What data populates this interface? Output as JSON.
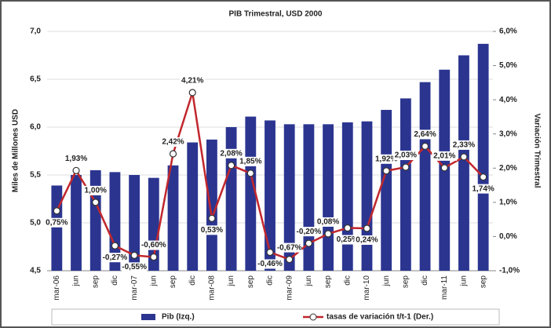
{
  "chart_data": {
    "type": "bar+line",
    "title": "PIB Trimestral, USD 2000",
    "ylabel": "Miles de Millones USD",
    "y2label": "Variación Trimestral",
    "categories": [
      "mar-06",
      "jun",
      "sep",
      "dic",
      "mar-07",
      "jun",
      "sep",
      "dic",
      "mar-08",
      "jun",
      "sep",
      "dic",
      "mar-09",
      "jun",
      "sep",
      "dic",
      "mar-10",
      "jun",
      "sep",
      "dic",
      "mar-11",
      "jun",
      "sep"
    ],
    "series": [
      {
        "name": "Pib (Izq.)",
        "type": "bar",
        "color": "#2b3590",
        "values": [
          5.39,
          5.5,
          5.55,
          5.53,
          5.5,
          5.47,
          5.6,
          5.84,
          5.87,
          6.0,
          6.11,
          6.07,
          6.03,
          6.03,
          6.03,
          6.05,
          6.06,
          6.18,
          6.3,
          6.47,
          6.6,
          6.75,
          6.87
        ]
      },
      {
        "name": "tasas de variación t/t-1 (Der.)",
        "type": "line",
        "axis": "y2",
        "color": "#c1272d",
        "values": [
          0.75,
          1.93,
          1.0,
          -0.27,
          -0.55,
          -0.6,
          2.42,
          4.21,
          0.53,
          2.08,
          1.85,
          -0.46,
          -0.67,
          -0.2,
          0.08,
          0.25,
          0.24,
          1.92,
          2.03,
          2.64,
          2.01,
          2.33,
          1.74
        ],
        "value_labels": [
          "0,75%",
          "1,93%",
          "1,00%",
          "-0,27%",
          "-0,55%",
          "-0,60%",
          "2,42%",
          "4,21%",
          "0,53%",
          "2,08%",
          "1,85%",
          "-0,46%",
          "-0,67%",
          "-0,20%",
          "0,08%",
          "0,25%",
          "0,24%",
          "1,92%",
          "2,03%",
          "2,64%",
          "2,01%",
          "2,33%",
          "1,74%"
        ]
      }
    ],
    "ylim": [
      4.5,
      7.0
    ],
    "yticks": [
      {
        "value": 4.5,
        "label": "4,5"
      },
      {
        "value": 5.0,
        "label": "5,0"
      },
      {
        "value": 5.5,
        "label": "5,5"
      },
      {
        "value": 6.0,
        "label": "6,0"
      },
      {
        "value": 6.5,
        "label": "6,5"
      },
      {
        "value": 7.0,
        "label": "7,0"
      }
    ],
    "y2lim": [
      -1.0,
      6.0
    ],
    "y2ticks": [
      {
        "value": -1,
        "label": "-1,0%"
      },
      {
        "value": 0,
        "label": "0,0%"
      },
      {
        "value": 1,
        "label": "1,0%"
      },
      {
        "value": 2,
        "label": "2,0%"
      },
      {
        "value": 3,
        "label": "3,0%"
      },
      {
        "value": 4,
        "label": "4,0%"
      },
      {
        "value": 5,
        "label": "5,0%"
      },
      {
        "value": 6,
        "label": "6,0%"
      }
    ],
    "grid": true,
    "legend": "bottom"
  }
}
